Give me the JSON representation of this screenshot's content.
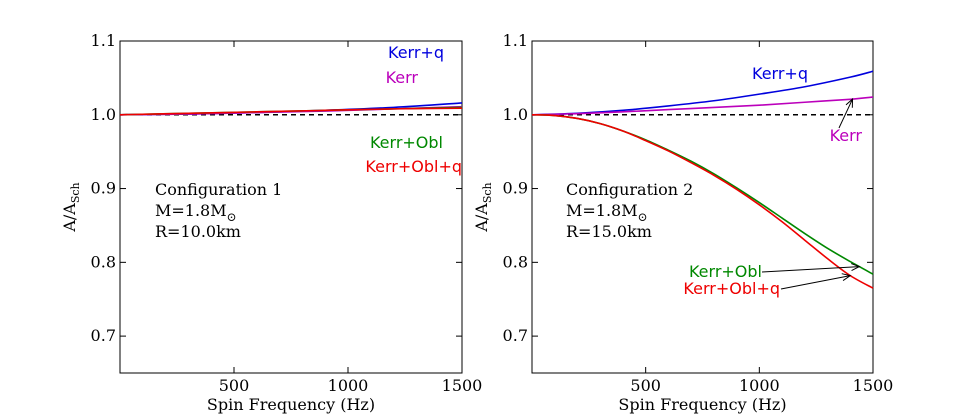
{
  "chart_data": [
    {
      "type": "line",
      "xlabel": "Spin Frequency (Hz)",
      "ylabel": "A/A",
      "ylabel_sub": "Sch",
      "xlim": [
        0,
        1500
      ],
      "ylim": [
        0.65,
        1.1
      ],
      "xticks": [
        500,
        1000,
        1500
      ],
      "xtick_labels": [
        "500",
        "1000",
        "1500"
      ],
      "yticks": [
        0.7,
        0.8,
        0.9,
        1.0,
        1.1
      ],
      "ytick_labels": [
        "0.7",
        "0.8",
        "0.9",
        "1.0",
        "1.1"
      ],
      "reference_line": 1.0,
      "config_text": [
        "Configuration 1",
        "M=1.8M",
        "R=10.0km"
      ],
      "mass_unit_symbol": "⊙",
      "colors": {
        "Kerr+q": "#0000dd",
        "Kerr": "#bb00bb",
        "Kerr+Obl": "#008800",
        "Kerr+Obl+q": "#ee0000"
      },
      "series": [
        {
          "name": "Kerr+q",
          "x": [
            0,
            300,
            600,
            900,
            1200,
            1500
          ],
          "y": [
            1.0,
            1.001,
            1.003,
            1.006,
            1.01,
            1.016
          ]
        },
        {
          "name": "Kerr",
          "x": [
            0,
            300,
            600,
            900,
            1200,
            1500
          ],
          "y": [
            1.0,
            1.001,
            1.003,
            1.005,
            1.008,
            1.011
          ]
        },
        {
          "name": "Kerr+Obl",
          "x": [
            0,
            300,
            600,
            900,
            1200,
            1500
          ],
          "y": [
            1.0,
            1.002,
            1.004,
            1.006,
            1.008,
            1.01
          ]
        },
        {
          "name": "Kerr+Obl+q",
          "x": [
            0,
            300,
            600,
            900,
            1200,
            1500
          ],
          "y": [
            1.0,
            1.002,
            1.004,
            1.006,
            1.008,
            1.009
          ]
        }
      ]
    },
    {
      "type": "line",
      "xlabel": "Spin Frequency (Hz)",
      "ylabel": "A/A",
      "ylabel_sub": "Sch",
      "xlim": [
        0,
        1500
      ],
      "ylim": [
        0.65,
        1.1
      ],
      "xticks": [
        500,
        1000,
        1500
      ],
      "xtick_labels": [
        "500",
        "1000",
        "1500"
      ],
      "yticks": [
        0.7,
        0.8,
        0.9,
        1.0,
        1.1
      ],
      "ytick_labels": [
        "0.7",
        "0.8",
        "0.9",
        "1.0",
        "1.1"
      ],
      "reference_line": 1.0,
      "config_text": [
        "Configuration 2",
        "M=1.8M",
        "R=15.0km"
      ],
      "mass_unit_symbol": "⊙",
      "colors": {
        "Kerr+q": "#0000dd",
        "Kerr": "#bb00bb",
        "Kerr+Obl": "#008800",
        "Kerr+Obl+q": "#ee0000"
      },
      "series": [
        {
          "name": "Kerr+q",
          "x": [
            0,
            200,
            400,
            600,
            800,
            1000,
            1200,
            1400,
            1500
          ],
          "y": [
            1.0,
            1.002,
            1.006,
            1.012,
            1.019,
            1.028,
            1.038,
            1.051,
            1.059
          ]
        },
        {
          "name": "Kerr",
          "x": [
            0,
            200,
            400,
            600,
            800,
            1000,
            1200,
            1400,
            1500
          ],
          "y": [
            1.0,
            1.0015,
            1.004,
            1.007,
            1.01,
            1.013,
            1.017,
            1.021,
            1.024
          ]
        },
        {
          "name": "Kerr+Obl",
          "x": [
            0,
            100,
            200,
            300,
            400,
            500,
            600,
            700,
            800,
            900,
            1000,
            1100,
            1200,
            1300,
            1400,
            1500
          ],
          "y": [
            1.0,
            0.999,
            0.995,
            0.988,
            0.978,
            0.966,
            0.952,
            0.937,
            0.92,
            0.901,
            0.881,
            0.86,
            0.839,
            0.819,
            0.801,
            0.784
          ]
        },
        {
          "name": "Kerr+Obl+q",
          "x": [
            0,
            100,
            200,
            300,
            400,
            500,
            600,
            700,
            800,
            900,
            1000,
            1100,
            1200,
            1300,
            1400,
            1500
          ],
          "y": [
            1.0,
            0.999,
            0.995,
            0.988,
            0.978,
            0.965,
            0.951,
            0.935,
            0.918,
            0.899,
            0.878,
            0.855,
            0.83,
            0.805,
            0.782,
            0.765
          ]
        }
      ]
    }
  ]
}
